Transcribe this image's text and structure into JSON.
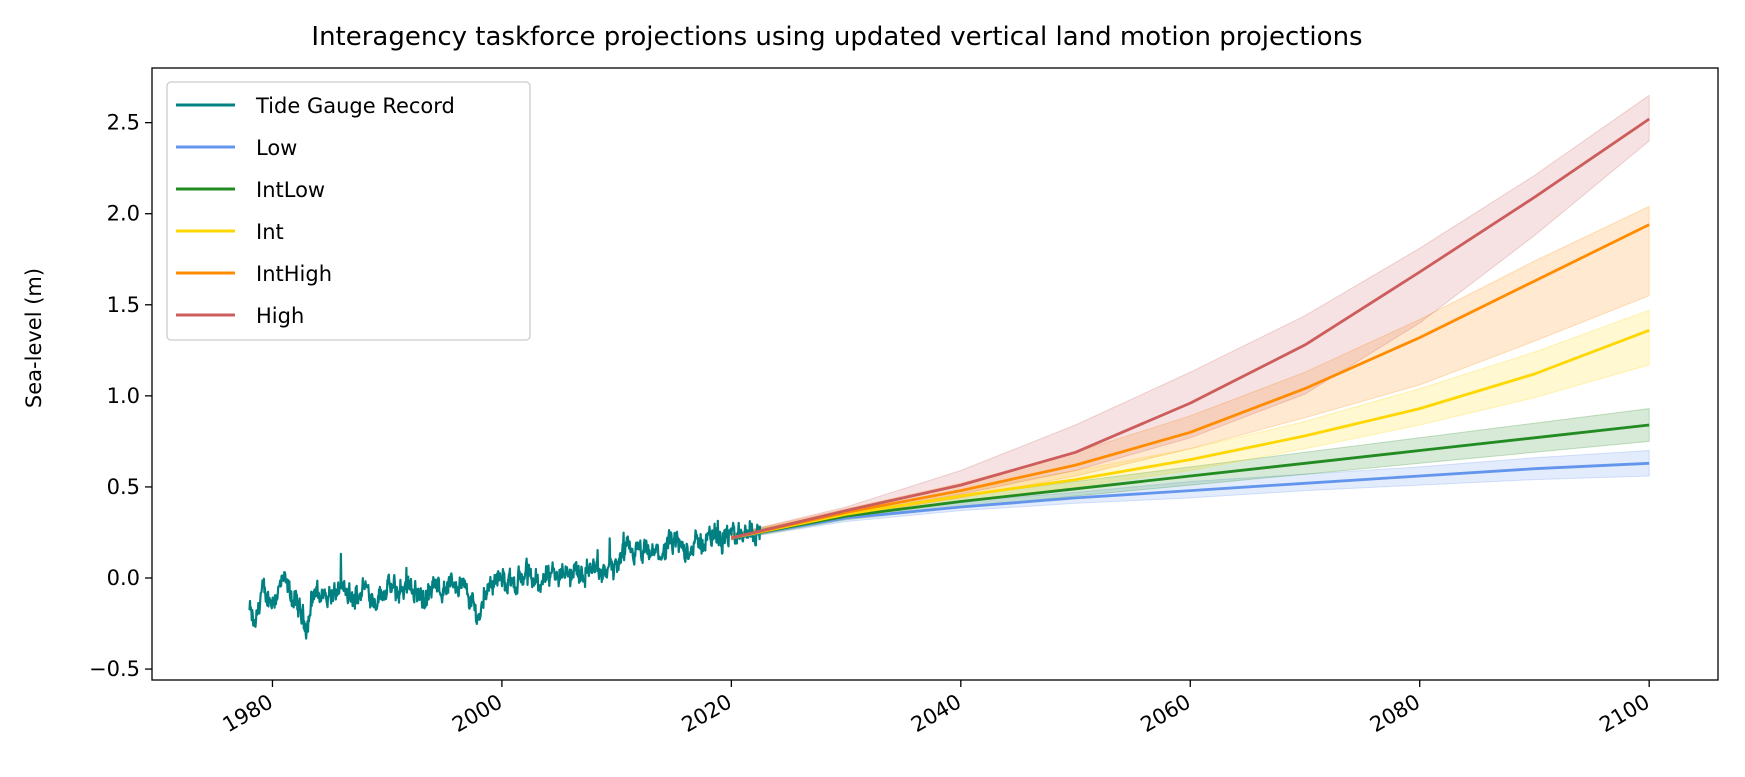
{
  "chart_data": {
    "type": "line",
    "title": "Interagency taskforce projections using updated vertical land motion projections",
    "xlabel": "",
    "ylabel": "Sea-level (m)",
    "xlim": [
      1969.5,
      2106
    ],
    "ylim": [
      -0.56,
      2.8
    ],
    "xticks": [
      1980,
      2000,
      2020,
      2040,
      2060,
      2080,
      2100
    ],
    "xtick_labels": [
      "1980",
      "2000",
      "2020",
      "2040",
      "2060",
      "2080",
      "2100"
    ],
    "yticks": [
      -0.5,
      0.0,
      0.5,
      1.0,
      1.5,
      2.0,
      2.5
    ],
    "ytick_labels": [
      "−0.5",
      "0.0",
      "0.5",
      "1.0",
      "1.5",
      "2.0",
      "2.5"
    ],
    "grid": false,
    "legend_position": "top-left",
    "tide_gauge": {
      "name": "Tide Gauge Record",
      "color": "#008080",
      "x_start": 1978.0,
      "x_end": 2022.5,
      "anchors": [
        [
          1978.0,
          -0.18
        ],
        [
          1978.5,
          -0.28
        ],
        [
          1979.0,
          -0.08
        ],
        [
          1980.0,
          -0.12
        ],
        [
          1981.0,
          -0.02
        ],
        [
          1982.0,
          -0.14
        ],
        [
          1983.0,
          -0.26
        ],
        [
          1983.6,
          -0.08
        ],
        [
          1985.0,
          -0.1
        ],
        [
          1986.0,
          -0.06
        ],
        [
          1987.0,
          -0.13
        ],
        [
          1988.0,
          -0.04
        ],
        [
          1989.0,
          -0.12
        ],
        [
          1990.0,
          -0.05
        ],
        [
          1991.0,
          -0.08
        ],
        [
          1992.0,
          -0.02
        ],
        [
          1993.0,
          -0.12
        ],
        [
          1994.0,
          -0.06
        ],
        [
          1995.0,
          -0.05
        ],
        [
          1996.0,
          -0.02
        ],
        [
          1997.0,
          -0.08
        ],
        [
          1998.0,
          -0.22
        ],
        [
          1998.7,
          -0.04
        ],
        [
          1999.5,
          0.0
        ],
        [
          2001.0,
          -0.03
        ],
        [
          2002.0,
          0.02
        ],
        [
          2003.0,
          -0.02
        ],
        [
          2004.0,
          0.01
        ],
        [
          2005.0,
          0.03
        ],
        [
          2006.0,
          0.02
        ],
        [
          2007.0,
          0.03
        ],
        [
          2008.0,
          0.05
        ],
        [
          2009.0,
          0.03
        ],
        [
          2010.0,
          0.06
        ],
        [
          2011.0,
          0.15
        ],
        [
          2012.0,
          0.13
        ],
        [
          2013.0,
          0.13
        ],
        [
          2014.0,
          0.14
        ],
        [
          2015.0,
          0.19
        ],
        [
          2016.0,
          0.16
        ],
        [
          2017.0,
          0.18
        ],
        [
          2018.0,
          0.22
        ],
        [
          2019.0,
          0.24
        ],
        [
          2020.0,
          0.22
        ],
        [
          2021.0,
          0.25
        ],
        [
          2022.5,
          0.26
        ]
      ]
    },
    "x": [
      2020,
      2030,
      2040,
      2050,
      2060,
      2070,
      2080,
      2090,
      2100
    ],
    "series": [
      {
        "name": "Low",
        "color": "#6495ED",
        "values": [
          0.22,
          0.33,
          0.39,
          0.44,
          0.48,
          0.52,
          0.56,
          0.6,
          0.63
        ],
        "lower": [
          0.21,
          0.31,
          0.37,
          0.41,
          0.44,
          0.48,
          0.51,
          0.54,
          0.56
        ],
        "upper": [
          0.24,
          0.35,
          0.42,
          0.47,
          0.53,
          0.57,
          0.61,
          0.66,
          0.7
        ]
      },
      {
        "name": "IntLow",
        "color": "#228B22",
        "values": [
          0.22,
          0.34,
          0.42,
          0.49,
          0.56,
          0.63,
          0.7,
          0.77,
          0.84
        ],
        "lower": [
          0.21,
          0.32,
          0.39,
          0.45,
          0.51,
          0.57,
          0.63,
          0.69,
          0.75
        ],
        "upper": [
          0.24,
          0.36,
          0.45,
          0.53,
          0.61,
          0.69,
          0.77,
          0.85,
          0.93
        ]
      },
      {
        "name": "Int",
        "color": "#FFD700",
        "values": [
          0.22,
          0.35,
          0.45,
          0.54,
          0.65,
          0.78,
          0.93,
          1.12,
          1.36
        ],
        "lower": [
          0.21,
          0.33,
          0.42,
          0.5,
          0.59,
          0.71,
          0.84,
          0.99,
          1.17
        ],
        "upper": [
          0.24,
          0.37,
          0.48,
          0.59,
          0.71,
          0.86,
          1.04,
          1.24,
          1.47
        ]
      },
      {
        "name": "IntHigh",
        "color": "#FF8C00",
        "values": [
          0.22,
          0.36,
          0.48,
          0.62,
          0.8,
          1.04,
          1.32,
          1.63,
          1.94
        ],
        "lower": [
          0.21,
          0.34,
          0.44,
          0.56,
          0.71,
          0.88,
          1.06,
          1.3,
          1.55
        ],
        "upper": [
          0.24,
          0.38,
          0.52,
          0.69,
          0.89,
          1.13,
          1.42,
          1.74,
          2.04
        ]
      },
      {
        "name": "High",
        "color": "#CD5C5C",
        "values": [
          0.22,
          0.37,
          0.51,
          0.69,
          0.96,
          1.28,
          1.68,
          2.09,
          2.52
        ],
        "lower": [
          0.21,
          0.35,
          0.46,
          0.59,
          0.77,
          1.01,
          1.4,
          1.88,
          2.4
        ],
        "upper": [
          0.24,
          0.39,
          0.59,
          0.84,
          1.13,
          1.44,
          1.81,
          2.21,
          2.65
        ]
      }
    ]
  }
}
